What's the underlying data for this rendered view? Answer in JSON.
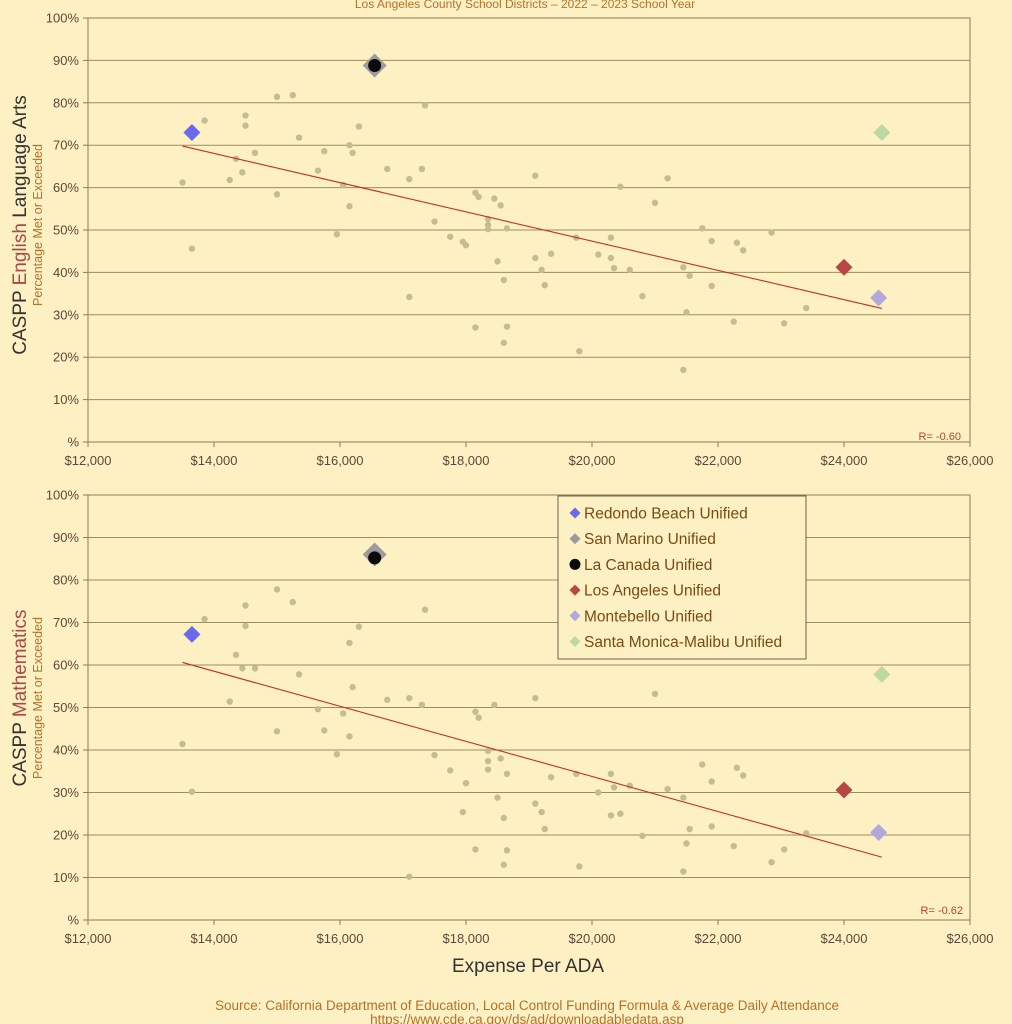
{
  "subtitle": "Los Angeles County School Districts – 2022 – 2023 School Year",
  "x_axis_label": "Expense Per ADA",
  "source_line1": "Source: California Department of Education, Local Control Funding Formula & Average Daily Attendance",
  "source_line2": "https://www.cde.ca.gov/ds/ad/downloadabledata.asp",
  "colors": {
    "background": "#fdf0c2",
    "gridline": "#9a8f5a",
    "frame": "#8a8048",
    "background_point": "#c3bd92",
    "trend_line": "#c42e2e",
    "accent_text": "#b5712a",
    "subject_word": "#a84848"
  },
  "highlighted_districts": [
    {
      "name": "Redondo Beach Unified",
      "color": "#6a6aee",
      "marker": "diamond"
    },
    {
      "name": "San Marino Unified",
      "color": "#9c9c9c",
      "marker": "diamond"
    },
    {
      "name": "La Canada Unified",
      "color": "#0b0b0b",
      "marker": "circle"
    },
    {
      "name": "Los Angeles Unified",
      "color": "#b84646",
      "marker": "diamond"
    },
    {
      "name": "Montebello Unified",
      "color": "#b3a8dc",
      "marker": "diamond"
    },
    {
      "name": "Santa Monica-Malibu Unified",
      "color": "#bed8a2",
      "marker": "diamond"
    }
  ],
  "chart_data": [
    {
      "type": "scatter",
      "ylabel_prefix": "CASPP ",
      "ylabel_subject": "English",
      "ylabel_suffix": " Language Arts",
      "ylabel_sub": "Percentage Met or Exceeded",
      "xlim": [
        12000,
        26000
      ],
      "ylim": [
        0,
        100
      ],
      "x_ticks": [
        "$12,000",
        "$14,000",
        "$16,000",
        "$18,000",
        "$20,000",
        "$22,000",
        "$24,000",
        "$26,000"
      ],
      "y_ticks": [
        "%",
        "10%",
        "20%",
        "30%",
        "40%",
        "50%",
        "60%",
        "70%",
        "80%",
        "90%",
        "100%"
      ],
      "r_label": "R= -0.60",
      "trend": {
        "x": [
          13500,
          24600
        ],
        "y": [
          69.8,
          31.5
        ]
      },
      "highlighted": [
        {
          "x": 13650,
          "y": 73.0
        },
        {
          "x": 16550,
          "y": 88.8
        },
        {
          "x": 16550,
          "y": 88.8
        },
        {
          "x": 24000,
          "y": 41.2
        },
        {
          "x": 24550,
          "y": 34.0
        },
        {
          "x": 24600,
          "y": 73.0
        }
      ],
      "points": [
        [
          13500,
          61.2
        ],
        [
          13650,
          45.6
        ],
        [
          13850,
          75.8
        ],
        [
          14250,
          61.8
        ],
        [
          14350,
          66.8
        ],
        [
          14450,
          63.6
        ],
        [
          14500,
          77.0
        ],
        [
          14500,
          74.6
        ],
        [
          14650,
          68.2
        ],
        [
          15000,
          81.4
        ],
        [
          15000,
          58.4
        ],
        [
          15250,
          81.8
        ],
        [
          15350,
          71.8
        ],
        [
          15650,
          64.0
        ],
        [
          15750,
          68.6
        ],
        [
          15950,
          49.0
        ],
        [
          16050,
          60.6
        ],
        [
          16150,
          55.6
        ],
        [
          16150,
          70.0
        ],
        [
          16200,
          68.2
        ],
        [
          16300,
          74.4
        ],
        [
          16750,
          64.4
        ],
        [
          17100,
          62.0
        ],
        [
          17100,
          34.2
        ],
        [
          17300,
          64.4
        ],
        [
          17350,
          79.4
        ],
        [
          17500,
          52.0
        ],
        [
          17750,
          48.4
        ],
        [
          17950,
          47.2
        ],
        [
          18000,
          46.4
        ],
        [
          18150,
          58.8
        ],
        [
          18150,
          27.0
        ],
        [
          18200,
          57.8
        ],
        [
          18350,
          51.2
        ],
        [
          18350,
          52.6
        ],
        [
          18350,
          50.2
        ],
        [
          18450,
          57.4
        ],
        [
          18500,
          42.6
        ],
        [
          18550,
          55.8
        ],
        [
          18600,
          38.2
        ],
        [
          18600,
          23.4
        ],
        [
          18650,
          50.4
        ],
        [
          18650,
          27.2
        ],
        [
          19100,
          62.8
        ],
        [
          19100,
          43.4
        ],
        [
          19200,
          40.6
        ],
        [
          19250,
          37.0
        ],
        [
          19350,
          44.4
        ],
        [
          19750,
          48.2
        ],
        [
          19800,
          21.4
        ],
        [
          20100,
          44.2
        ],
        [
          20300,
          48.2
        ],
        [
          20300,
          43.4
        ],
        [
          20350,
          41.0
        ],
        [
          20450,
          60.2
        ],
        [
          20600,
          40.6
        ],
        [
          20800,
          34.4
        ],
        [
          21000,
          56.4
        ],
        [
          21200,
          62.2
        ],
        [
          21450,
          41.2
        ],
        [
          21450,
          17.0
        ],
        [
          21500,
          30.6
        ],
        [
          21550,
          39.2
        ],
        [
          21750,
          50.4
        ],
        [
          21900,
          36.8
        ],
        [
          21900,
          47.4
        ],
        [
          22250,
          28.4
        ],
        [
          22300,
          47.0
        ],
        [
          22400,
          45.2
        ],
        [
          22850,
          49.4
        ],
        [
          23050,
          28.0
        ],
        [
          23400,
          31.6
        ]
      ]
    },
    {
      "type": "scatter",
      "ylabel_prefix": "CASPP ",
      "ylabel_subject": "Mathematics",
      "ylabel_suffix": "",
      "ylabel_sub": "Percentage Met or Exceeded",
      "xlim": [
        12000,
        26000
      ],
      "ylim": [
        0,
        100
      ],
      "x_ticks": [
        "$12,000",
        "$14,000",
        "$16,000",
        "$18,000",
        "$20,000",
        "$22,000",
        "$24,000",
        "$26,000"
      ],
      "y_ticks": [
        "%",
        "10%",
        "20%",
        "30%",
        "40%",
        "50%",
        "60%",
        "70%",
        "80%",
        "90%",
        "100%"
      ],
      "r_label": "R= -0.62",
      "trend": {
        "x": [
          13500,
          24600
        ],
        "y": [
          60.6,
          14.8
        ]
      },
      "highlighted": [
        {
          "x": 13650,
          "y": 67.2
        },
        {
          "x": 16550,
          "y": 86.0
        },
        {
          "x": 16550,
          "y": 85.2
        },
        {
          "x": 24000,
          "y": 30.6
        },
        {
          "x": 24550,
          "y": 20.6
        },
        {
          "x": 24600,
          "y": 57.8
        }
      ],
      "points": [
        [
          13500,
          41.4
        ],
        [
          13650,
          30.2
        ],
        [
          13850,
          70.8
        ],
        [
          14250,
          51.4
        ],
        [
          14350,
          62.4
        ],
        [
          14450,
          59.2
        ],
        [
          14500,
          74.0
        ],
        [
          14500,
          69.2
        ],
        [
          14650,
          59.2
        ],
        [
          15000,
          77.8
        ],
        [
          15000,
          44.4
        ],
        [
          15250,
          74.8
        ],
        [
          15350,
          57.8
        ],
        [
          15650,
          49.6
        ],
        [
          15750,
          44.6
        ],
        [
          15950,
          39.0
        ],
        [
          16050,
          48.6
        ],
        [
          16150,
          43.2
        ],
        [
          16150,
          65.2
        ],
        [
          16200,
          54.8
        ],
        [
          16300,
          69.0
        ],
        [
          16750,
          51.8
        ],
        [
          17100,
          52.2
        ],
        [
          17100,
          10.2
        ],
        [
          17300,
          50.6
        ],
        [
          17350,
          73.0
        ],
        [
          17500,
          38.8
        ],
        [
          17750,
          35.2
        ],
        [
          17950,
          25.4
        ],
        [
          18000,
          32.2
        ],
        [
          18150,
          49.0
        ],
        [
          18150,
          16.6
        ],
        [
          18200,
          47.6
        ],
        [
          18350,
          37.4
        ],
        [
          18350,
          39.8
        ],
        [
          18350,
          35.4
        ],
        [
          18450,
          50.6
        ],
        [
          18500,
          28.8
        ],
        [
          18550,
          38.0
        ],
        [
          18600,
          24.0
        ],
        [
          18600,
          13.0
        ],
        [
          18650,
          34.4
        ],
        [
          18650,
          16.4
        ],
        [
          19100,
          52.2
        ],
        [
          19100,
          27.4
        ],
        [
          19200,
          25.4
        ],
        [
          19250,
          21.4
        ],
        [
          19350,
          33.6
        ],
        [
          19750,
          34.4
        ],
        [
          19800,
          12.6
        ],
        [
          20100,
          30.0
        ],
        [
          20300,
          34.4
        ],
        [
          20300,
          24.6
        ],
        [
          20350,
          31.2
        ],
        [
          20450,
          25.0
        ],
        [
          20600,
          31.6
        ],
        [
          20800,
          19.8
        ],
        [
          21000,
          53.2
        ],
        [
          21200,
          30.8
        ],
        [
          21450,
          28.8
        ],
        [
          21450,
          11.4
        ],
        [
          21500,
          18.0
        ],
        [
          21550,
          21.4
        ],
        [
          21750,
          36.6
        ],
        [
          21900,
          32.6
        ],
        [
          21900,
          22.0
        ],
        [
          22250,
          17.4
        ],
        [
          22300,
          35.8
        ],
        [
          22400,
          34.0
        ],
        [
          22850,
          13.6
        ],
        [
          23050,
          16.6
        ],
        [
          23400,
          20.4
        ]
      ]
    }
  ]
}
